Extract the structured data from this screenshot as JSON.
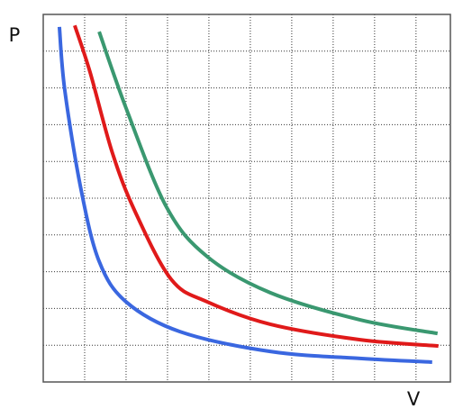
{
  "chart_data": {
    "type": "line",
    "xlabel": "V",
    "ylabel": "P",
    "xlim": [
      0,
      9.83
    ],
    "ylim": [
      0,
      10
    ],
    "xticks": [
      1,
      2,
      3,
      4,
      5,
      6,
      7,
      8,
      9
    ],
    "yticks": [
      1,
      2,
      3,
      4,
      5,
      6,
      7,
      8,
      9
    ],
    "grid": true,
    "series": [
      {
        "color": "#3a67e0",
        "x": [
          0.39,
          0.52,
          0.91,
          1.35,
          2.0,
          3.3,
          5.48,
          7.65,
          9.39
        ],
        "values": [
          9.66,
          7.94,
          5.25,
          3.28,
          2.18,
          1.37,
          0.83,
          0.64,
          0.54
        ]
      },
      {
        "color": "#e01a1a",
        "x": [
          0.76,
          1.13,
          1.67,
          2.22,
          3.09,
          3.96,
          5.48,
          7.65,
          9.54
        ],
        "values": [
          9.7,
          8.43,
          6.23,
          4.63,
          2.79,
          2.18,
          1.57,
          1.15,
          0.98
        ]
      },
      {
        "color": "#3a9870",
        "x": [
          1.35,
          2.0,
          2.98,
          3.96,
          5.48,
          7.65,
          9.52
        ],
        "values": [
          9.53,
          7.45,
          4.75,
          3.41,
          2.43,
          1.69,
          1.32
        ]
      }
    ]
  }
}
